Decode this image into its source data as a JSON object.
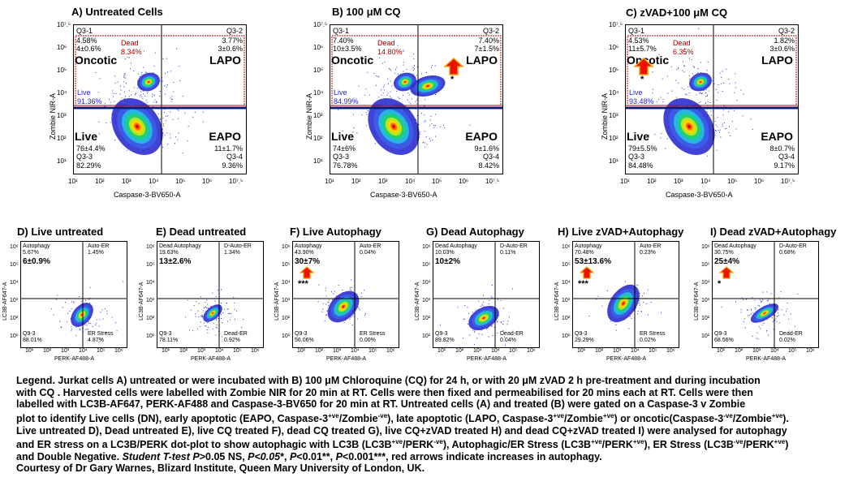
{
  "top_panels": [
    {
      "title": "A) Untreated Cells",
      "ylabel": "Zombie NIR-A",
      "xlabel": "Caspase-3-BV650-A",
      "q1": "Q3-1",
      "q1_pct": "4.58%",
      "q1_val": "4±0.6%",
      "q2": "Q3-2",
      "q2_pct": "3.77%",
      "q2_val": "3±0.6%",
      "q3": "Q3-3",
      "q3_val": "76±4.4%",
      "q3_pct": "82.29%",
      "q4": "Q3-4",
      "q4_val": "11±1.7%",
      "q4_pct": "9.36%",
      "dead": "Dead",
      "dead_pct": "8.34%",
      "live_gate": "Live",
      "live_gate_pct": "91.36%",
      "oncotic": "Oncotic",
      "lapo": "LAPO",
      "live": "Live",
      "eapo": "EAPO"
    },
    {
      "title": "B) 100 μM CQ",
      "ylabel": "Zombie NIR-A",
      "xlabel": "Caspase-3-BV650-A",
      "q1": "Q3-1",
      "q1_pct": "7.40%",
      "q1_val": "10±3.5%",
      "q2": "Q3-2",
      "q2_pct": "7.40%",
      "q2_val": "7±1.5%",
      "q3": "Q3-3",
      "q3_val": "74±6%",
      "q3_pct": "76.78%",
      "q4": "Q3-4",
      "q4_val": "9±1.6%",
      "q4_pct": "8.42%",
      "dead": "Dead",
      "dead_pct": "14.80%",
      "live_gate": "Live",
      "live_gate_pct": "84.99%",
      "oncotic": "Oncotic",
      "lapo": "LAPO",
      "live": "Live",
      "eapo": "EAPO",
      "star": "*"
    },
    {
      "title": "C) zVAD+100 μM CQ",
      "ylabel": "Zombie NIR-A",
      "xlabel": "Caspase-3-BV650-A",
      "q1": "Q3-1",
      "q1_pct": "4.53%",
      "q1_val": "11±5.7%",
      "q2": "Q3-2",
      "q2_pct": "1.82%",
      "q2_val": "3±0.6%",
      "q3": "Q3-3",
      "q3_val": "79±5.5%",
      "q3_pct": "84.48%",
      "q4": "Q3-4",
      "q4_val": "8±0.7%",
      "q4_pct": "9.17%",
      "dead": "Dead",
      "dead_pct": "6.35%",
      "live_gate": "Live",
      "live_gate_pct": "93.48%",
      "oncotic": "Oncotic",
      "lapo": "LAPO",
      "live": "Live",
      "eapo": "EAPO",
      "star": "*"
    }
  ],
  "top_x_ticks": [
    "10¹",
    "10²",
    "10³",
    "10⁴",
    "10⁵",
    "10⁶",
    "10⁷.⁵"
  ],
  "top_y_ticks": [
    "10⁷.⁵",
    "10⁶",
    "10⁵",
    "10⁴",
    "10³",
    "10²",
    "10¹"
  ],
  "bottom_panels": [
    {
      "title": "D) Live untreated",
      "ylabel": "LC3B-AF647-A",
      "xlabel": "PERK-AF488-A",
      "ul": "Autophagy",
      "ul_pct": "5.67%",
      "ul_val": "6±0.9%",
      "ur": "Auto-ER",
      "ur_pct": "1.45%",
      "ll": "Q9-3",
      "ll_pct": "88.01%",
      "lr": "ER Stress",
      "lr_pct": "4.87%",
      "star": ""
    },
    {
      "title": "E) Dead untreated",
      "ylabel": "LC3B-AF647-A",
      "xlabel": "PERK-AF488-A",
      "ul": "Dead Autophagy",
      "ul_pct": "19.63%",
      "ul_val": "13±2.6%",
      "ur": "D-Auto-ER",
      "ur_pct": "1.34%",
      "ll": "Q9-3",
      "ll_pct": "78.11%",
      "lr": "Dead-ER",
      "lr_pct": "0.92%",
      "star": ""
    },
    {
      "title": "F) Live Autophagy",
      "ylabel": "LC3B-AF647-A",
      "xlabel": "PERK-AF488-A",
      "ul": "Autophagy",
      "ul_pct": "43.90%",
      "ul_val": "30±7%",
      "ur": "Auto-ER",
      "ur_pct": "0.04%",
      "ll": "Q9-3",
      "ll_pct": "56.06%",
      "lr": "ER Stress",
      "lr_pct": "0.00%",
      "star": "***"
    },
    {
      "title": "G) Dead Autophagy",
      "ylabel": "LC3B-AF647-A",
      "xlabel": "PERK-AF488-A",
      "ul": "Dead Autophagy",
      "ul_pct": "10.03%",
      "ul_val": "10±2%",
      "ur": "D-Auto-ER",
      "ur_pct": "0.11%",
      "ll": "Q9-3",
      "ll_pct": "89.82%",
      "lr": "Dead-ER",
      "lr_pct": "0.04%",
      "star": ""
    },
    {
      "title": "H) Live zVAD+Autophagy",
      "ylabel": "LC3B-AF647-A",
      "xlabel": "PERK-AF488-A",
      "ul": "Autophagy",
      "ul_pct": "70.48%",
      "ul_val": "53±13.6%",
      "ur": "Auto-ER",
      "ur_pct": "0.23%",
      "ll": "Q9-3",
      "ll_pct": "29.29%",
      "lr": "ER Stress",
      "lr_pct": "0.02%",
      "star": "***"
    },
    {
      "title": "I) Dead zVAD+Autophagy",
      "ylabel": "LC3B-AF647-A",
      "xlabel": "PERK-AF488-A",
      "ul": "Dead Autophagy",
      "ul_pct": "30.75%",
      "ul_val": "25±4%",
      "ur": "D-Auto-ER",
      "ur_pct": "0.68%",
      "ll": "Q9-3",
      "ll_pct": "68.56%",
      "lr": "Dead-ER",
      "lr_pct": "0.02%",
      "star": "*"
    }
  ],
  "bottom_x_ticks": [
    "10¹",
    "10²",
    "10³",
    "10⁴",
    "10⁵",
    "10⁶"
  ],
  "bottom_y_ticks": [
    "10⁶",
    "10⁵",
    "10⁴",
    "10³",
    "10²",
    "10¹"
  ],
  "legend": {
    "l1": "Legend. Jurkat cells A) untreated or were incubated with B) 100 μM Chloroquine (CQ)  for 24 h, or with 20 μM zVAD 2 h pre-treatment and during incubation",
    "l2": "with CQ . Harvested cells were labelled with Zombie NIR for 20 min at RT. Cells were then fixed and permeabilised for 20 mins each at RT.  Cells were then",
    "l3": "labelled with LC3B-AF647,  PERK-AF488  and Caspase-3-BV650  for 20 min at RT. Untreated  cells (A)  and treated (B) were gated on a Caspase-3  v Zombie",
    "l4a": "plot to identify Live cells (DN), early apoptotic (EAPO,  Caspase-3",
    "l4b": "+ve",
    "l4c": "/Zombie",
    "l4d": "-ve",
    "l4e": "),  late apoptotic (LAPO,  Caspase-3",
    "l4f": "+ve",
    "l4g": "/Zombie",
    "l4h": "+ve",
    "l4i": ")  or oncotic(Caspase-3",
    "l4j": "-ve",
    "l4k": "/Zombie",
    "l4l": "+ve",
    "l4m": ").",
    "l5": "Live untreated D), Dead untreated E), live CQ treated F), dead CQ treated G), live CQ+zVAD treated H) and dead CQ+zVAD treated I) were analysed for autophagy",
    "l6a": "and ER stress  on a LC3B/PERK  dot-plot to show autophagic with LC3B  (LC3B",
    "l6b": "+ve",
    "l6c": "/PERK",
    "l6d": "-ve",
    "l6e": "),  Autophagic/ER Stress  (LC3B",
    "l6f": "+ve",
    "l6g": "/PERK",
    "l6h": "+ve",
    "l6i": "),  ER Stress  (LC3B",
    "l6j": "-ve",
    "l6k": "/PERK",
    "l6l": "+ve",
    "l6m": ")",
    "l7a": "and Double Negative.  ",
    "l7b": "Student T-test  P",
    "l7c": ">0.05 NS,  ",
    "l7d": "P<0.05",
    "l7e": "*,  ",
    "l7f": "P",
    "l7g": "<0.01**,  ",
    "l7h": "P",
    "l7i": "<0.001***,  red arrows indicate increases in autophagy.",
    "l8": "Courtesy  of  Dr Gary Warnes, Blizard Institute,  Queen Mary University  of  London, UK."
  },
  "colors": {
    "dead_label": "#b00000",
    "live_gate": "#2222cc",
    "arrow": "#ee1100",
    "arrow_outline": "#f0a000",
    "gate_red": "#c00000",
    "gate_blue": "#2233bb"
  }
}
